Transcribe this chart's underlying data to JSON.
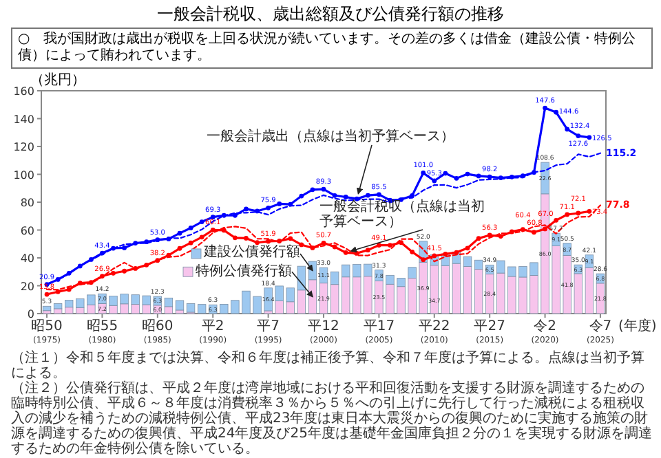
{
  "chart_data": {
    "type": "bar",
    "stacked": true,
    "title": "一般会計税収、歳出総額及び公債発行額の推移",
    "subtitle": "○　我が国財政は歳出が税収を上回る状況が続いています。その差の多くは借金（建設公債・特例公債）によって賄われています。",
    "ylabel": "（兆円）",
    "xlabel": "(年度)",
    "categories": [
      "昭50 (1975)",
      null,
      null,
      null,
      null,
      "昭55 (1980)",
      null,
      null,
      null,
      null,
      "昭60 (1985)",
      null,
      null,
      null,
      null,
      "平2 (1990)",
      null,
      null,
      null,
      null,
      "平7 (1995)",
      null,
      null,
      null,
      null,
      "平12 (2000)",
      null,
      null,
      null,
      null,
      "平17 (2005)",
      null,
      null,
      null,
      null,
      "平22 (2010)",
      null,
      null,
      null,
      null,
      "平27 (2015)",
      null,
      null,
      null,
      null,
      "令2 (2020)",
      null,
      null,
      null,
      null,
      "令7 (2025)"
    ],
    "ylim": [
      0,
      160
    ],
    "yticks": [
      0,
      20,
      40,
      60,
      80,
      100,
      120,
      140,
      160
    ],
    "grid": false,
    "legend": "center",
    "series": [
      {
        "name": "特例公債発行額",
        "color": "#f7c4ec",
        "values": [
          2.1,
          3.5,
          4.6,
          4.3,
          6.3,
          7.2,
          5.8,
          7.0,
          6.7,
          6.4,
          6.0,
          5.0,
          2.5,
          1.0,
          0.2,
          0.0,
          0.0,
          0.0,
          0.0,
          0.0,
          2.0,
          9.1,
          8.5,
          16.9,
          24.3,
          21.9,
          20.9,
          26.3,
          26.3,
          26.8,
          23.5,
          21.1,
          19.4,
          25.4,
          36.9,
          34.7,
          34.4,
          36.0,
          33.8,
          31.9,
          28.4,
          29.1,
          26.7,
          26.2,
          27.4,
          86.0,
          48.6,
          41.8,
          28.7,
          33.0,
          21.8
        ],
        "value_labels": [
          null,
          null,
          null,
          null,
          null,
          "7.2",
          null,
          null,
          null,
          null,
          "6.0",
          null,
          null,
          null,
          null,
          null,
          null,
          null,
          null,
          null,
          null,
          null,
          null,
          null,
          null,
          "21.9",
          null,
          null,
          null,
          null,
          "23.5",
          null,
          null,
          null,
          "36.9",
          "34.7",
          null,
          null,
          null,
          null,
          "28.4",
          null,
          null,
          null,
          null,
          "86.0",
          null,
          "41.8",
          null,
          null,
          "21.8"
        ]
      },
      {
        "name": "建設公債発行額",
        "color": "#9dc8f0",
        "values": [
          3.2,
          3.7,
          5.0,
          6.3,
          7.1,
          7.0,
          6.8,
          7.0,
          6.8,
          6.4,
          6.3,
          6.2,
          6.9,
          6.2,
          6.4,
          6.3,
          6.7,
          9.5,
          16.2,
          12.3,
          16.4,
          10.7,
          9.9,
          17.1,
          13.2,
          11.1,
          9.1,
          8.7,
          9.1,
          8.7,
          7.8,
          6.4,
          6.0,
          7.8,
          15.1,
          7.6,
          8.4,
          8.3,
          7.1,
          6.5,
          6.5,
          8.9,
          6.9,
          7.6,
          9.2,
          22.6,
          9.1,
          8.7,
          6.3,
          9.1,
          6.8
        ],
        "value_labels": [
          null,
          null,
          null,
          null,
          null,
          "7.0",
          null,
          null,
          null,
          null,
          "6.3",
          null,
          null,
          null,
          null,
          "6.3",
          null,
          null,
          null,
          null,
          "16.4",
          null,
          null,
          null,
          null,
          "11.1",
          null,
          null,
          null,
          null,
          "7.8",
          null,
          null,
          null,
          null,
          null,
          null,
          null,
          null,
          null,
          "6.5",
          null,
          null,
          null,
          null,
          "22.6",
          "9.1",
          "8.7",
          "6.3",
          "9.1",
          "6.8"
        ]
      },
      {
        "name": "一般会計歳出（点線は当初予算ベース）",
        "type": "line",
        "color": "#0000ff",
        "marker": "circle",
        "line_style": "solid",
        "values": [
          20.9,
          24.5,
          29.0,
          34.1,
          38.8,
          43.4,
          46.9,
          47.2,
          50.6,
          51.5,
          53.0,
          53.6,
          57.7,
          61.5,
          65.9,
          69.3,
          70.5,
          70.5,
          75.1,
          73.6,
          75.9,
          78.8,
          78.5,
          84.4,
          89.0,
          89.3,
          84.8,
          83.7,
          82.4,
          84.9,
          85.5,
          81.4,
          81.8,
          84.7,
          101.0,
          95.3,
          100.7,
          97.1,
          100.2,
          98.8,
          98.2,
          97.5,
          98.1,
          98.9,
          101.4,
          147.6,
          144.6,
          132.4,
          127.6,
          126.5,
          null
        ],
        "value_labels": [
          "20.9",
          null,
          null,
          null,
          null,
          "43.4",
          null,
          null,
          null,
          null,
          "53.0",
          null,
          null,
          null,
          null,
          "69.3",
          null,
          null,
          null,
          null,
          "75.9",
          null,
          null,
          null,
          null,
          "89.3",
          null,
          null,
          null,
          null,
          "85.5",
          null,
          null,
          null,
          "101.0",
          "95.3",
          null,
          null,
          null,
          null,
          "98.2",
          null,
          null,
          null,
          null,
          "147.6",
          "144.6",
          "132.4",
          "127.6",
          "126.5",
          null
        ]
      },
      {
        "type": "line",
        "color": "#0000ff",
        "marker": "none",
        "line_style": "dashed",
        "values": [
          21.3,
          24.3,
          28.5,
          34.3,
          38.6,
          42.6,
          46.8,
          49.7,
          50.4,
          50.6,
          52.5,
          54.1,
          54.1,
          56.7,
          60.4,
          66.2,
          70.3,
          72.2,
          72.4,
          73.1,
          71.0,
          75.1,
          77.4,
          77.7,
          81.9,
          85.0,
          82.7,
          81.2,
          81.8,
          82.1,
          82.2,
          79.7,
          82.9,
          83.1,
          88.5,
          92.3,
          92.4,
          90.3,
          92.6,
          95.9,
          96.3,
          96.7,
          97.5,
          97.7,
          101.5,
          102.7,
          106.6,
          107.6,
          114.4,
          112.6,
          115.2
        ],
        "value_labels": [
          null,
          null,
          null,
          null,
          null,
          null,
          null,
          null,
          null,
          null,
          null,
          null,
          null,
          null,
          null,
          null,
          null,
          null,
          null,
          null,
          null,
          null,
          null,
          null,
          null,
          null,
          null,
          null,
          null,
          null,
          null,
          null,
          null,
          null,
          null,
          null,
          null,
          null,
          null,
          null,
          null,
          null,
          null,
          null,
          null,
          null,
          null,
          null,
          null,
          null,
          "115.2"
        ]
      },
      {
        "name": "一般会計税収（点線は当初予算ベース）",
        "type": "line",
        "color": "#ff0000",
        "marker": "circle",
        "line_style": "solid",
        "values": [
          13.8,
          15.7,
          17.3,
          21.9,
          22.4,
          26.9,
          29.0,
          30.5,
          32.4,
          34.9,
          38.2,
          41.9,
          46.8,
          50.8,
          54.9,
          60.1,
          59.8,
          54.4,
          54.1,
          51.0,
          51.9,
          52.1,
          53.9,
          49.4,
          47.2,
          50.7,
          47.9,
          43.8,
          43.3,
          45.6,
          49.1,
          49.1,
          51.0,
          44.3,
          38.7,
          41.5,
          42.8,
          43.9,
          47.0,
          54.0,
          56.3,
          55.5,
          58.8,
          60.4,
          58.4,
          60.8,
          67.0,
          71.1,
          72.1,
          73.4,
          null
        ],
        "value_labels": [
          "13.8",
          null,
          null,
          null,
          null,
          "26.9",
          null,
          null,
          null,
          null,
          "38.2",
          null,
          null,
          null,
          null,
          "60.1",
          null,
          null,
          null,
          null,
          "51.9",
          null,
          null,
          null,
          null,
          "50.7",
          null,
          null,
          null,
          null,
          "49.1",
          null,
          null,
          null,
          null,
          "41.5",
          null,
          null,
          null,
          null,
          "56.3",
          null,
          null,
          "60.4",
          null,
          "60.8",
          "67.0",
          "71.1",
          "72.1",
          "73.4",
          null
        ]
      },
      {
        "type": "line",
        "color": "#ff0000",
        "marker": "none",
        "line_style": "dashed",
        "values": [
          17.3,
          17.1,
          19.4,
          20.9,
          21.7,
          26.4,
          32.2,
          36.6,
          32.3,
          34.6,
          38.5,
          40.6,
          41.2,
          45.1,
          51.0,
          58.0,
          61.7,
          62.5,
          61.3,
          53.7,
          53.7,
          51.3,
          57.8,
          58.5,
          47.1,
          48.7,
          50.7,
          46.8,
          41.8,
          41.7,
          44.0,
          45.9,
          53.5,
          53.6,
          46.1,
          37.4,
          40.9,
          42.3,
          43.1,
          50.0,
          54.5,
          57.6,
          57.7,
          59.1,
          62.5,
          63.5,
          57.4,
          65.2,
          69.4,
          69.6,
          77.8
        ],
        "value_labels": [
          null,
          null,
          null,
          null,
          null,
          null,
          null,
          null,
          null,
          null,
          null,
          null,
          null,
          null,
          null,
          null,
          null,
          null,
          null,
          null,
          null,
          null,
          null,
          null,
          null,
          null,
          null,
          null,
          null,
          null,
          null,
          null,
          null,
          null,
          null,
          null,
          null,
          null,
          null,
          null,
          null,
          null,
          null,
          null,
          null,
          null,
          null,
          null,
          null,
          null,
          "77.8"
        ]
      }
    ],
    "totals": [
      "5.3",
      null,
      null,
      null,
      null,
      "14.2",
      null,
      null,
      null,
      null,
      "12.3",
      null,
      null,
      null,
      null,
      "6.3",
      null,
      null,
      null,
      null,
      "18.4",
      null,
      null,
      null,
      null,
      "33.0",
      null,
      null,
      null,
      null,
      "31.3",
      null,
      null,
      null,
      "52.0",
      null,
      null,
      null,
      null,
      null,
      "34.9",
      null,
      null,
      null,
      null,
      "108.6",
      "57.7",
      "50.5",
      "35.0",
      "42.1",
      "28.6"
    ],
    "annotations": [
      "（注１）令和５年度までは決算、令和６年度は補正後予算、令和７年度は予算による。点線は当初予算による。",
      "（注２）公債発行額は、平成２年度は湾岸地域における平和回復活動を支援する財源を調達するための臨時特別公債、平成６～８年度は消費税率３％から５％への引上げに先行して行った減税による租税収入の減少を補うための減税特例公債、平成23年度は東日本大震災からの復興のために実施する施策の財源を調達するための復興債、平成24年度及び25年度は基礎年金国庫負担２分の１を実現する財源を調達するための年金特例公債を除いている。"
    ]
  }
}
